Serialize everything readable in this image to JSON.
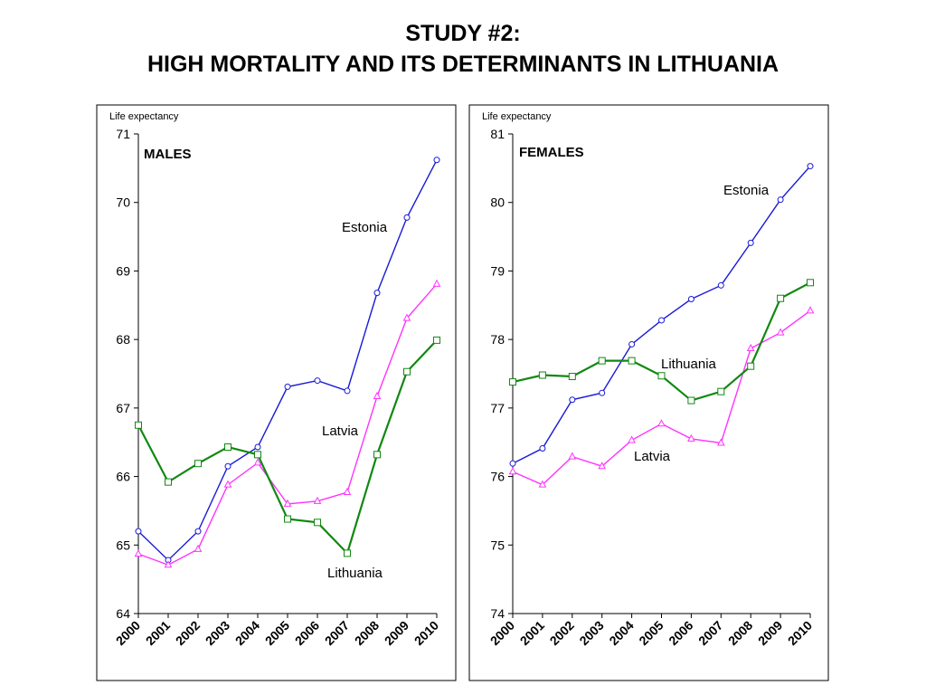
{
  "title_line1": "STUDY #2:",
  "title_line2": "HIGH MORTALITY AND ITS DETERMINANTS IN LITHUANIA",
  "chart_data": [
    {
      "type": "line",
      "panel_label": "MALES",
      "ylabel": "Life expectancy",
      "ylim": [
        64,
        71
      ],
      "yticks": [
        64,
        65,
        66,
        67,
        68,
        69,
        70,
        71
      ],
      "categories": [
        "2000",
        "2001",
        "2002",
        "2003",
        "2004",
        "2005",
        "2006",
        "2007",
        "2008",
        "2009",
        "2010"
      ],
      "grid": false,
      "series": [
        {
          "name": "Estonia",
          "color": "#1a1ad6",
          "marker": "circle",
          "values": [
            65.2,
            64.78,
            65.2,
            66.15,
            66.43,
            67.31,
            67.4,
            67.25,
            68.68,
            69.78,
            70.62
          ]
        },
        {
          "name": "Latvia",
          "color": "#ff33ff",
          "marker": "triangle",
          "values": [
            64.87,
            64.71,
            64.94,
            65.88,
            66.2,
            65.6,
            65.64,
            65.77,
            67.17,
            68.31,
            68.81
          ]
        },
        {
          "name": "Lithuania",
          "color": "#118811",
          "marker": "square",
          "values": [
            66.75,
            65.92,
            66.19,
            66.43,
            66.32,
            65.38,
            65.33,
            64.88,
            66.32,
            67.53,
            67.99
          ]
        }
      ]
    },
    {
      "type": "line",
      "panel_label": "FEMALES",
      "ylabel": "Life expectancy",
      "ylim": [
        74,
        81
      ],
      "yticks": [
        74,
        75,
        76,
        77,
        78,
        79,
        80,
        81
      ],
      "categories": [
        "2000",
        "2001",
        "2002",
        "2003",
        "2004",
        "2005",
        "2006",
        "2007",
        "2008",
        "2009",
        "2010"
      ],
      "grid": false,
      "series": [
        {
          "name": "Estonia",
          "color": "#1a1ad6",
          "marker": "circle",
          "values": [
            76.19,
            76.41,
            77.12,
            77.22,
            77.93,
            78.28,
            78.59,
            78.79,
            79.41,
            80.04,
            80.53
          ]
        },
        {
          "name": "Latvia",
          "color": "#ff33ff",
          "marker": "triangle",
          "values": [
            76.07,
            75.88,
            76.29,
            76.15,
            76.53,
            76.77,
            76.55,
            76.49,
            77.87,
            78.1,
            78.42
          ]
        },
        {
          "name": "Lithuania",
          "color": "#118811",
          "marker": "square",
          "values": [
            77.38,
            77.48,
            77.46,
            77.69,
            77.69,
            77.47,
            77.11,
            77.24,
            77.61,
            78.6,
            78.83
          ]
        }
      ]
    }
  ]
}
